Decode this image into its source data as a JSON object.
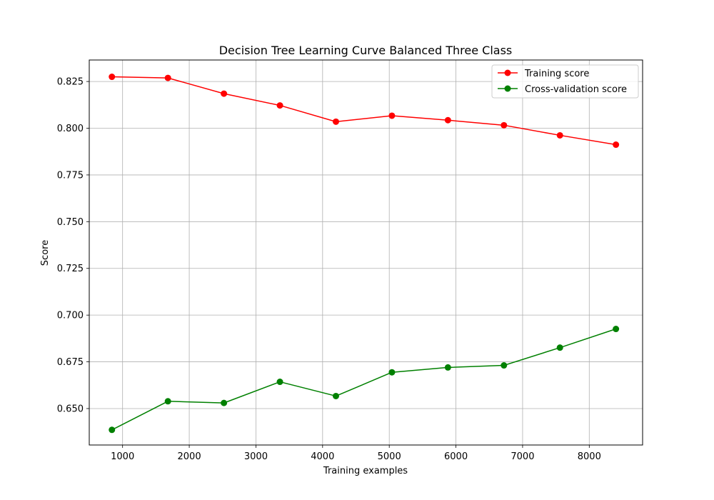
{
  "chart_data": {
    "type": "line",
    "title": "Decision Tree Learning Curve Balanced Three Class",
    "xlabel": "Training examples",
    "ylabel": "Score",
    "xlim": [
      500,
      8800
    ],
    "ylim": [
      0.6305,
      0.8365
    ],
    "xticks": [
      1000,
      2000,
      3000,
      4000,
      5000,
      6000,
      7000,
      8000
    ],
    "xtick_labels": [
      "1000",
      "2000",
      "3000",
      "4000",
      "5000",
      "6000",
      "7000",
      "8000"
    ],
    "yticks": [
      0.65,
      0.675,
      0.7,
      0.725,
      0.75,
      0.775,
      0.8,
      0.825
    ],
    "ytick_labels": [
      "0.650",
      "0.675",
      "0.700",
      "0.725",
      "0.750",
      "0.775",
      "0.800",
      "0.825"
    ],
    "grid": true,
    "legend_position": "top-right",
    "x": [
      840,
      1680,
      2520,
      3360,
      4200,
      5040,
      5880,
      6720,
      7560,
      8400
    ],
    "series": [
      {
        "name": "Training score",
        "color": "#ff0000",
        "values": [
          0.8275,
          0.8269,
          0.8185,
          0.8122,
          0.8035,
          0.8067,
          0.8043,
          0.8016,
          0.7962,
          0.7912
        ]
      },
      {
        "name": "Cross-validation score",
        "color": "#008000",
        "values": [
          0.6386,
          0.6539,
          0.653,
          0.6643,
          0.6567,
          0.6694,
          0.672,
          0.6731,
          0.6826,
          0.6926
        ]
      }
    ]
  }
}
